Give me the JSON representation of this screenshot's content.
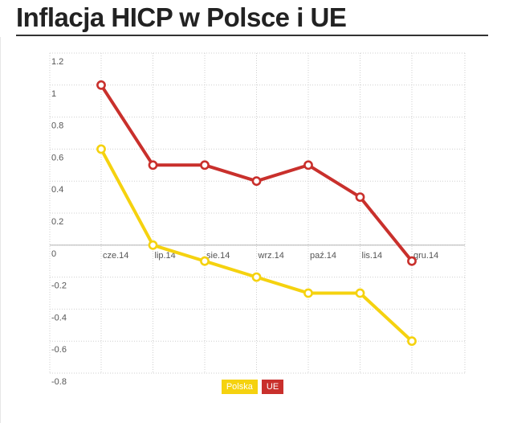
{
  "page": {
    "title": "Inflacja HICP w Polsce i UE"
  },
  "chart_data": {
    "type": "line",
    "title": "Inflacja HICP w Polsce i UE",
    "categories": [
      "cze.14",
      "lip.14",
      "sie.14",
      "wrz.14",
      "paź.14",
      "lis.14",
      "gru.14"
    ],
    "series": [
      {
        "name": "Polska",
        "color": "#f5d20f",
        "values": [
          0.6,
          0.0,
          -0.1,
          -0.2,
          -0.3,
          -0.3,
          -0.6
        ]
      },
      {
        "name": "UE",
        "color": "#c9302c",
        "values": [
          1.0,
          0.5,
          0.5,
          0.4,
          0.5,
          0.3,
          -0.1
        ]
      }
    ],
    "y_ticks": [
      "1.2",
      "1",
      "0.8",
      "0.6",
      "0.4",
      "0.2",
      "0",
      "-0.2",
      "-0.4",
      "-0.6",
      "-0.8"
    ],
    "ylim": [
      -0.8,
      1.2
    ],
    "grid": true,
    "legend_position": "bottom-center"
  }
}
